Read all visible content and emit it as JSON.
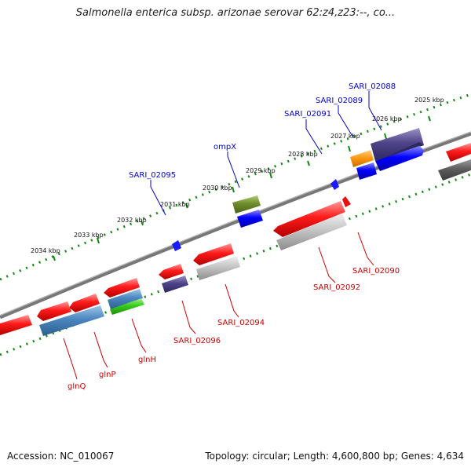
{
  "title": "Salmonella enterica subsp. arizonae serovar 62:z4,z23:--, co...",
  "footer": {
    "accession": "Accession: NC_010067",
    "summary": "Topology: circular; Length: 4,600,800 bp; Genes: 4,634"
  },
  "colors": {
    "forward_label": "#0000cc",
    "reverse_label": "#cc0000",
    "backbone": "#777777",
    "tick": "#118811"
  },
  "kbp_labels": [
    "2025 kbp",
    "2026 kbp",
    "2027 kbp",
    "2028 kbp",
    "2029 kbp",
    "2030 kbp",
    "2031 kbp",
    "2032 kbp",
    "2033 kbp",
    "2034 kbp"
  ],
  "gene_labels_top": [
    "SARI_02088",
    "SARI_02089",
    "SARI_02091",
    "ompX",
    "SARI_02095"
  ],
  "gene_labels_bottom": [
    "SARI_02090",
    "SARI_02092",
    "SARI_02094",
    "SARI_02096",
    "glnH",
    "glnP",
    "glnQ"
  ]
}
